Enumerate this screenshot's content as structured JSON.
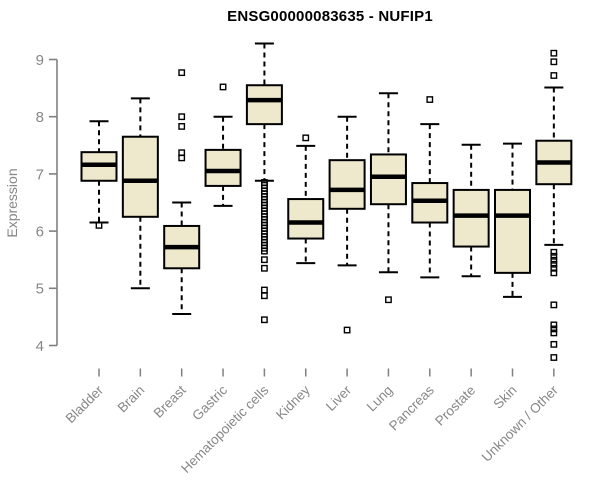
{
  "chart_data": {
    "type": "boxplot",
    "title": "ENSG00000083635 - NUFIP1",
    "ylabel": "Expression",
    "xlabel": "",
    "ylim": [
      4,
      9
    ],
    "yticks": [
      4,
      5,
      6,
      7,
      8,
      9
    ],
    "grid": false,
    "legend": "none",
    "categories": [
      "Bladder",
      "Brain",
      "Breast",
      "Gastric",
      "Hematopoietic cells",
      "Kidney",
      "Liver",
      "Lung",
      "Pancreas",
      "Prostate",
      "Skin",
      "Unknown / Other"
    ],
    "boxes": [
      {
        "category": "Bladder",
        "whisker_low": 6.15,
        "q1": 6.88,
        "median": 7.16,
        "q3": 7.38,
        "whisker_high": 7.92,
        "outliers": [
          6.1
        ]
      },
      {
        "category": "Brain",
        "whisker_low": 5.0,
        "q1": 6.25,
        "median": 6.88,
        "q3": 7.65,
        "whisker_high": 8.32,
        "outliers": []
      },
      {
        "category": "Breast",
        "whisker_low": 4.55,
        "q1": 5.35,
        "median": 5.72,
        "q3": 6.09,
        "whisker_high": 6.5,
        "outliers": [
          8.77,
          8.0,
          7.83,
          7.37,
          7.28
        ]
      },
      {
        "category": "Gastric",
        "whisker_low": 6.44,
        "q1": 6.79,
        "median": 7.05,
        "q3": 7.42,
        "whisker_high": 8.0,
        "outliers": [
          8.52
        ]
      },
      {
        "category": "Hematopoietic cells",
        "whisker_low": 6.88,
        "q1": 7.87,
        "median": 8.29,
        "q3": 8.55,
        "whisker_high": 9.28,
        "outliers": [
          6.85,
          6.8,
          6.75,
          6.7,
          6.65,
          6.6,
          6.55,
          6.5,
          6.45,
          6.4,
          6.35,
          6.3,
          6.25,
          6.2,
          6.15,
          6.1,
          6.05,
          6.0,
          5.95,
          5.9,
          5.85,
          5.8,
          5.75,
          5.7,
          5.65,
          5.5,
          5.35,
          4.97,
          4.87,
          4.45
        ]
      },
      {
        "category": "Kidney",
        "whisker_low": 5.44,
        "q1": 5.87,
        "median": 6.15,
        "q3": 6.56,
        "whisker_high": 7.49,
        "outliers": [
          7.63
        ]
      },
      {
        "category": "Liver",
        "whisker_low": 5.4,
        "q1": 6.39,
        "median": 6.72,
        "q3": 7.24,
        "whisker_high": 8.0,
        "outliers": [
          4.27
        ]
      },
      {
        "category": "Lung",
        "whisker_low": 5.28,
        "q1": 6.47,
        "median": 6.95,
        "q3": 7.34,
        "whisker_high": 8.41,
        "outliers": [
          4.8
        ]
      },
      {
        "category": "Pancreas",
        "whisker_low": 5.19,
        "q1": 6.15,
        "median": 6.53,
        "q3": 6.84,
        "whisker_high": 7.87,
        "outliers": [
          8.3
        ]
      },
      {
        "category": "Prostate",
        "whisker_low": 5.21,
        "q1": 5.73,
        "median": 6.27,
        "q3": 6.72,
        "whisker_high": 7.51,
        "outliers": []
      },
      {
        "category": "Skin",
        "whisker_low": 4.85,
        "q1": 5.27,
        "median": 6.27,
        "q3": 6.72,
        "whisker_high": 7.53,
        "outliers": []
      },
      {
        "category": "Unknown / Other",
        "whisker_low": 5.76,
        "q1": 6.82,
        "median": 7.2,
        "q3": 7.58,
        "whisker_high": 8.51,
        "outliers": [
          9.11,
          8.96,
          8.72,
          5.63,
          5.56,
          5.49,
          5.42,
          5.35,
          5.27,
          4.71,
          4.36,
          4.29,
          4.22,
          4.02,
          3.79
        ]
      }
    ],
    "colors": {
      "box_fill": "#EEE8CD",
      "box_stroke": "#000000",
      "median": "#000000",
      "whisker": "#000000",
      "outlier": "#000000",
      "axis_line": "#808080",
      "axis_text": "#878787",
      "title": "#000000",
      "background": "#FFFFFF"
    }
  }
}
